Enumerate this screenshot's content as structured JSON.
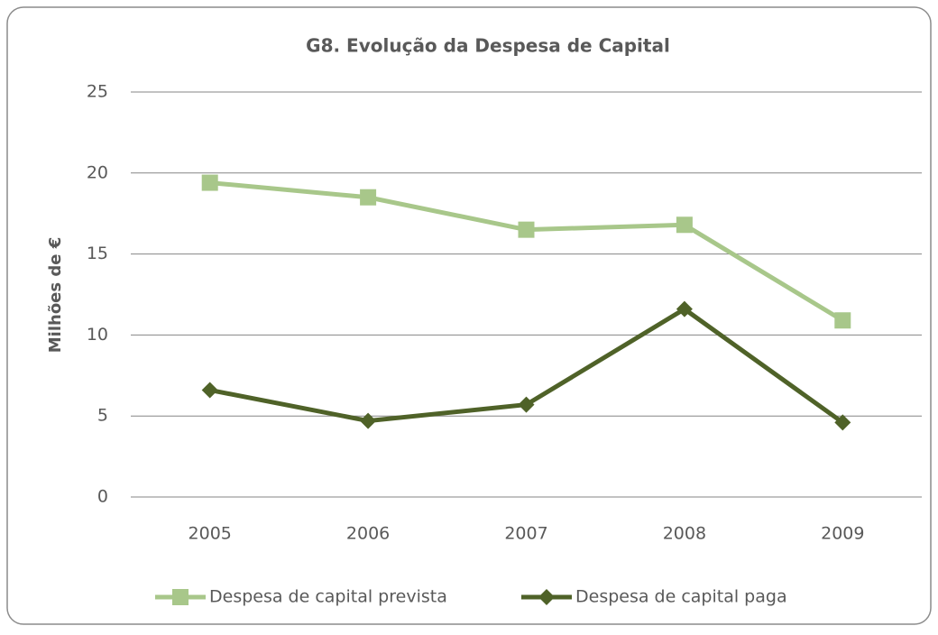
{
  "chart_data": {
    "type": "line",
    "title": "G8. Evolução da Despesa de Capital",
    "y_label": "Milhões de €",
    "categories": [
      "2005",
      "2006",
      "2007",
      "2008",
      "2009"
    ],
    "series": [
      {
        "name": "Despesa de capital prevista",
        "color": "#a8c78a",
        "marker": "square",
        "values": [
          19.4,
          18.5,
          16.5,
          16.8,
          10.9
        ]
      },
      {
        "name": "Despesa de capital paga",
        "color": "#4f6228",
        "marker": "diamond",
        "values": [
          6.6,
          4.7,
          5.7,
          11.6,
          4.6
        ]
      }
    ],
    "ylim": [
      0,
      25
    ],
    "yticks": [
      0,
      5,
      10,
      15,
      20,
      25
    ],
    "grid": true,
    "legend": "bottom"
  }
}
